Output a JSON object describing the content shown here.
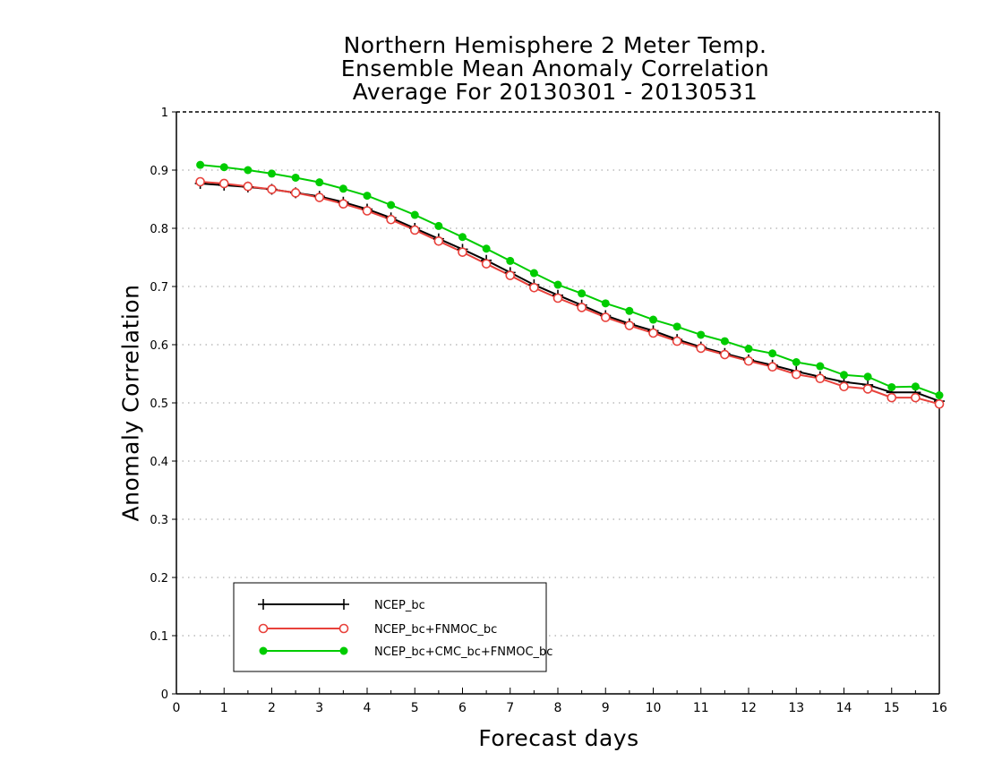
{
  "chart_data": {
    "type": "line",
    "title": [
      "Northern Hemisphere 2 Meter Temp.",
      "Ensemble Mean Anomaly Correlation",
      "Average For 20130301 - 20130531"
    ],
    "xlabel": "Forecast days",
    "ylabel": "Anomaly Correlation",
    "xlim": [
      0,
      16
    ],
    "ylim": [
      0,
      1
    ],
    "x_ticks": [
      0,
      1,
      2,
      3,
      4,
      5,
      6,
      7,
      8,
      9,
      10,
      11,
      12,
      13,
      14,
      15,
      16
    ],
    "y_ticks": [
      0,
      0.1,
      0.2,
      0.3,
      0.4,
      0.5,
      0.6,
      0.7,
      0.8,
      0.9,
      1
    ],
    "grid": "horizontal dotted",
    "legend_position": "bottom-left",
    "x": [
      0.5,
      1,
      1.5,
      2,
      2.5,
      3,
      3.5,
      4,
      4.5,
      5,
      5.5,
      6,
      6.5,
      7,
      7.5,
      8,
      8.5,
      9,
      9.5,
      10,
      10.5,
      11,
      11.5,
      12,
      12.5,
      13,
      13.5,
      14,
      14.5,
      15,
      15.5,
      16
    ],
    "series": [
      {
        "name": "NCEP_bc",
        "color": "#000000",
        "marker": "plus",
        "values": [
          0.877,
          0.874,
          0.871,
          0.867,
          0.861,
          0.855,
          0.845,
          0.833,
          0.818,
          0.8,
          0.782,
          0.764,
          0.745,
          0.724,
          0.703,
          0.685,
          0.668,
          0.65,
          0.636,
          0.624,
          0.609,
          0.596,
          0.585,
          0.574,
          0.565,
          0.554,
          0.545,
          0.536,
          0.531,
          0.518,
          0.518,
          0.503
        ]
      },
      {
        "name": "NCEP_bc+FNMOC_bc",
        "color": "#e8413b",
        "marker": "open-circle",
        "values": [
          0.88,
          0.877,
          0.872,
          0.867,
          0.861,
          0.853,
          0.842,
          0.83,
          0.815,
          0.797,
          0.778,
          0.759,
          0.739,
          0.719,
          0.698,
          0.68,
          0.664,
          0.647,
          0.633,
          0.62,
          0.606,
          0.594,
          0.583,
          0.572,
          0.562,
          0.549,
          0.542,
          0.528,
          0.524,
          0.509,
          0.509,
          0.498
        ]
      },
      {
        "name": "NCEP_bc+CMC_bc+FNMOC_bc",
        "color": "#00cc00",
        "marker": "filled-circle",
        "values": [
          0.909,
          0.905,
          0.9,
          0.894,
          0.887,
          0.879,
          0.868,
          0.856,
          0.84,
          0.823,
          0.804,
          0.785,
          0.765,
          0.744,
          0.723,
          0.703,
          0.688,
          0.671,
          0.658,
          0.643,
          0.631,
          0.617,
          0.606,
          0.593,
          0.585,
          0.57,
          0.563,
          0.548,
          0.545,
          0.527,
          0.528,
          0.513
        ]
      }
    ]
  }
}
